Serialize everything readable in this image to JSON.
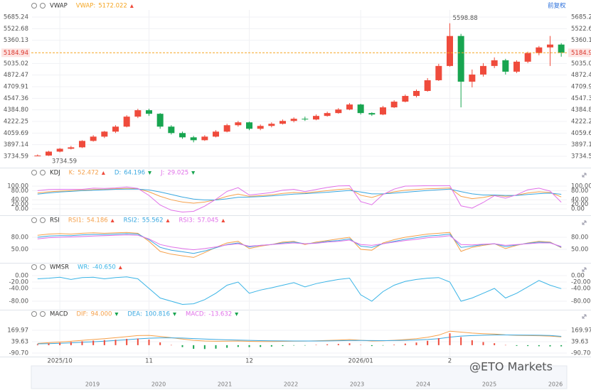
{
  "header": {
    "adjust": "前复权"
  },
  "watermark": "@ETO Markets",
  "navigator": {
    "years": [
      "2019",
      "2020",
      "2021",
      "2022",
      "2023",
      "2024",
      "2025",
      "2026"
    ]
  },
  "chart_data": [
    {
      "type": "candlestick",
      "title": "VWAP",
      "readouts": [
        {
          "name": "VWAP:",
          "value": 5172.022,
          "trend": "up",
          "color": "#f5a623"
        }
      ],
      "categories": [
        null,
        null,
        "2025/10",
        null,
        null,
        null,
        null,
        null,
        null,
        null,
        "11",
        null,
        null,
        null,
        null,
        null,
        null,
        null,
        null,
        "12",
        null,
        null,
        null,
        null,
        null,
        null,
        null,
        null,
        null,
        "2026/01",
        null,
        null,
        null,
        null,
        null,
        null,
        null,
        "2",
        null,
        null,
        null,
        null,
        null,
        null,
        null,
        null,
        null,
        null
      ],
      "ohlc": [
        [
          3735,
          3760,
          3734.59,
          3745
        ],
        [
          3745,
          3810,
          3740,
          3800
        ],
        [
          3800,
          3850,
          3790,
          3840
        ],
        [
          3840,
          3880,
          3830,
          3860
        ],
        [
          3860,
          3960,
          3850,
          3950
        ],
        [
          3950,
          4030,
          3940,
          4010
        ],
        [
          4010,
          4090,
          3990,
          4080
        ],
        [
          4080,
          4170,
          4060,
          4150
        ],
        [
          4150,
          4310,
          4140,
          4290
        ],
        [
          4290,
          4400,
          4270,
          4380
        ],
        [
          4380,
          4400,
          4300,
          4330
        ],
        [
          4330,
          4340,
          4120,
          4150
        ],
        [
          4150,
          4170,
          4040,
          4060
        ],
        [
          4060,
          4080,
          3980,
          4000
        ],
        [
          4000,
          4020,
          3930,
          3960
        ],
        [
          3960,
          4030,
          3950,
          4010
        ],
        [
          4010,
          4100,
          4000,
          4080
        ],
        [
          4080,
          4190,
          4070,
          4170
        ],
        [
          4170,
          4230,
          4150,
          4210
        ],
        [
          4210,
          4220,
          4100,
          4120
        ],
        [
          4120,
          4180,
          4100,
          4160
        ],
        [
          4160,
          4210,
          4140,
          4190
        ],
        [
          4190,
          4250,
          4180,
          4230
        ],
        [
          4230,
          4280,
          4210,
          4260
        ],
        [
          4260,
          4290,
          4230,
          4250
        ],
        [
          4250,
          4320,
          4240,
          4300
        ],
        [
          4300,
          4360,
          4290,
          4340
        ],
        [
          4340,
          4410,
          4330,
          4390
        ],
        [
          4390,
          4480,
          4380,
          4460
        ],
        [
          4460,
          4470,
          4320,
          4340
        ],
        [
          4340,
          4350,
          4300,
          4320
        ],
        [
          4320,
          4440,
          4310,
          4420
        ],
        [
          4420,
          4520,
          4410,
          4500
        ],
        [
          4500,
          4600,
          4490,
          4580
        ],
        [
          4580,
          4670,
          4560,
          4650
        ],
        [
          4650,
          4830,
          4640,
          4800
        ],
        [
          4800,
          5030,
          4790,
          5000
        ],
        [
          5000,
          5598.88,
          4990,
          5420
        ],
        [
          5420,
          5450,
          4420,
          4780
        ],
        [
          4780,
          4950,
          4700,
          4880
        ],
        [
          4880,
          5040,
          4850,
          5000
        ],
        [
          5000,
          5120,
          4970,
          5080
        ],
        [
          5080,
          5100,
          4880,
          4920
        ],
        [
          4920,
          5080,
          4900,
          5060
        ],
        [
          5060,
          5200,
          5040,
          5180
        ],
        [
          5180,
          5280,
          5150,
          5260
        ],
        [
          5260,
          5420,
          5000,
          5300
        ],
        [
          5300,
          5320,
          5130,
          5184.94
        ]
      ],
      "up_color": "#ef4b3c",
      "down_color": "#18a550",
      "ylim": [
        3615,
        5785
      ],
      "yticks": [
        5685.24,
        5522.68,
        5360.13,
        5035.02,
        4872.47,
        4709.91,
        4547.36,
        {
          "value": 4384.8,
          "label": "4384.80"
        },
        4222.25,
        4059.69,
        3897.14,
        3734.59
      ],
      "last_price": 5184.94,
      "last_price_color": "#f5a623",
      "high_label": 5598.88,
      "low_label": 3734.59,
      "grid": true
    },
    {
      "type": "line",
      "title": "KDJ",
      "ylim": [
        -20,
        120
      ],
      "yticks": [
        {
          "value": 100,
          "label": "100.00"
        },
        {
          "value": 80,
          "label": "80.00"
        },
        {
          "value": 40,
          "label": "40.00"
        },
        {
          "value": 20,
          "label": "20.00"
        },
        {
          "value": 0,
          "label": "0.00"
        }
      ],
      "series": [
        {
          "name": "K:",
          "color": "#f5a04a",
          "trend": "up",
          "values": [
            70,
            75,
            78,
            80,
            82,
            85,
            86,
            88,
            90,
            88,
            75,
            55,
            40,
            30,
            25,
            30,
            40,
            55,
            65,
            55,
            58,
            62,
            68,
            72,
            70,
            75,
            80,
            85,
            88,
            60,
            50,
            65,
            75,
            82,
            85,
            88,
            90,
            92,
            55,
            45,
            50,
            60,
            55,
            60,
            70,
            75,
            72,
            52.472
          ]
        },
        {
          "name": "D:",
          "color": "#3aa8e0",
          "trend": "down",
          "values": [
            65,
            70,
            74,
            77,
            80,
            82,
            84,
            86,
            87,
            87,
            83,
            74,
            63,
            52,
            43,
            39,
            39,
            44,
            51,
            52,
            54,
            57,
            61,
            65,
            67,
            70,
            73,
            77,
            81,
            74,
            66,
            66,
            69,
            73,
            77,
            81,
            84,
            87,
            76,
            66,
            61,
            61,
            59,
            59,
            63,
            67,
            69,
            64.196
          ]
        },
        {
          "name": "J:",
          "color": "#e070e8",
          "trend": "down",
          "values": [
            80,
            85,
            86,
            86,
            86,
            91,
            90,
            92,
            96,
            90,
            59,
            17,
            -6,
            -14,
            -11,
            12,
            42,
            77,
            93,
            61,
            66,
            72,
            82,
            86,
            76,
            85,
            94,
            101,
            102,
            32,
            18,
            63,
            87,
            100,
            101,
            102,
            102,
            102,
            13,
            3,
            28,
            58,
            47,
            62,
            84,
            91,
            78,
            29.025
          ]
        }
      ],
      "grid": true
    },
    {
      "type": "line",
      "title": "RSI",
      "ylim": [
        25,
        100
      ],
      "yticks": [
        {
          "value": 80,
          "label": "80.00"
        },
        {
          "value": 50,
          "label": "50.00"
        }
      ],
      "series": [
        {
          "name": "RSI1:",
          "color": "#f5a04a",
          "trend": "up",
          "values": [
            85,
            88,
            89,
            88,
            90,
            91,
            90,
            91,
            92,
            90,
            70,
            45,
            38,
            34,
            30,
            42,
            55,
            66,
            70,
            52,
            58,
            62,
            68,
            70,
            62,
            68,
            72,
            76,
            80,
            50,
            48,
            66,
            74,
            80,
            84,
            88,
            90,
            92,
            45,
            55,
            60,
            64,
            52,
            60,
            66,
            70,
            68,
            54.186
          ]
        },
        {
          "name": "RSI2:",
          "color": "#3aa8e0",
          "trend": "up",
          "values": [
            80,
            83,
            84,
            84,
            86,
            87,
            87,
            88,
            89,
            88,
            74,
            55,
            48,
            44,
            40,
            46,
            54,
            62,
            66,
            56,
            60,
            62,
            66,
            68,
            64,
            66,
            70,
            72,
            76,
            58,
            55,
            64,
            70,
            75,
            79,
            83,
            85,
            88,
            55,
            58,
            62,
            64,
            57,
            61,
            65,
            68,
            67,
            55.562
          ]
        },
        {
          "name": "RSI3:",
          "color": "#e070e8",
          "trend": "up",
          "values": [
            76,
            79,
            80,
            81,
            82,
            83,
            84,
            85,
            86,
            85,
            76,
            62,
            56,
            52,
            49,
            52,
            56,
            61,
            64,
            58,
            60,
            62,
            64,
            66,
            64,
            65,
            68,
            70,
            73,
            62,
            60,
            64,
            68,
            72,
            75,
            79,
            81,
            84,
            62,
            61,
            63,
            64,
            60,
            62,
            64,
            66,
            66,
            57.045
          ]
        }
      ],
      "grid": true
    },
    {
      "type": "line",
      "title": "WMSR",
      "ylim": [
        -105,
        10
      ],
      "yticks": [
        {
          "value": 0,
          "label": "0.00"
        },
        {
          "value": -20,
          "label": "-20.00"
        },
        {
          "value": -40,
          "label": "-40.00"
        },
        {
          "value": -80,
          "label": "-80.00"
        }
      ],
      "series": [
        {
          "name": "WR:",
          "color": "#3ab4e6",
          "trend": "up",
          "values": [
            -10,
            -8,
            -5,
            -12,
            -6,
            -5,
            -10,
            -6,
            -4,
            -10,
            -40,
            -70,
            -80,
            -90,
            -88,
            -75,
            -55,
            -30,
            -20,
            -55,
            -45,
            -38,
            -30,
            -22,
            -35,
            -25,
            -18,
            -12,
            -8,
            -60,
            -80,
            -50,
            -30,
            -18,
            -12,
            -8,
            -6,
            -20,
            -80,
            -70,
            -55,
            -40,
            -70,
            -55,
            -35,
            -15,
            -30,
            -40.65
          ],
          "value_labels": [
            null,
            null,
            null,
            null,
            null,
            null,
            null,
            null,
            null,
            null,
            null,
            null,
            null,
            null,
            null,
            null,
            null,
            null,
            null,
            null,
            null,
            null,
            null,
            null,
            null,
            null,
            null,
            null,
            null,
            null,
            null,
            null,
            null,
            null,
            null,
            null,
            null,
            null,
            null,
            null,
            null,
            null,
            null,
            null,
            null,
            null,
            null,
            "-40.650"
          ]
        }
      ],
      "grid": true
    },
    {
      "type": "line",
      "title": "MACD",
      "ylim": [
        -115,
        276
      ],
      "yticks": [
        169.97,
        39.63,
        {
          "value": -90.7,
          "label": "-90.70"
        }
      ],
      "series": [
        {
          "name": "DIF:",
          "color": "#f5a04a",
          "trend": "down",
          "values": [
            20,
            28,
            36,
            45,
            55,
            65,
            75,
            85,
            98,
            110,
            112,
            100,
            85,
            70,
            55,
            48,
            45,
            46,
            48,
            44,
            42,
            42,
            44,
            46,
            47,
            50,
            54,
            58,
            64,
            56,
            48,
            50,
            56,
            64,
            74,
            90,
            115,
            160,
            150,
            138,
            132,
            128,
            118,
            112,
            110,
            108,
            104,
            94
          ],
          "value_labels": [
            null,
            null,
            null,
            null,
            null,
            null,
            null,
            null,
            null,
            null,
            null,
            null,
            null,
            null,
            null,
            null,
            null,
            null,
            null,
            null,
            null,
            null,
            null,
            null,
            null,
            null,
            null,
            null,
            null,
            null,
            null,
            null,
            null,
            null,
            null,
            null,
            null,
            null,
            null,
            null,
            null,
            null,
            null,
            null,
            null,
            null,
            null,
            "94.000"
          ]
        },
        {
          "name": "DEA:",
          "color": "#3aa8e0",
          "trend": "down",
          "values": [
            15,
            18,
            22,
            27,
            33,
            39,
            46,
            54,
            62,
            72,
            80,
            84,
            84,
            81,
            76,
            70,
            65,
            61,
            58,
            55,
            52,
            50,
            49,
            48,
            48,
            48,
            49,
            51,
            53,
            54,
            53,
            52,
            53,
            55,
            59,
            65,
            75,
            92,
            104,
            110,
            114,
            117,
            117,
            116,
            115,
            114,
            111,
            100.816
          ]
        },
        {
          "name": "MACD:",
          "color": "#e070e8",
          "trend": "down",
          "type": "bar",
          "up_color": "#ef4b3c",
          "down_color": "#18a550",
          "values": [
            10,
            20,
            28,
            36,
            44,
            52,
            58,
            62,
            72,
            76,
            64,
            32,
            2,
            -22,
            -42,
            -44,
            -40,
            -30,
            -20,
            -22,
            -20,
            -16,
            -10,
            -4,
            -2,
            4,
            10,
            14,
            22,
            4,
            -10,
            -4,
            6,
            18,
            30,
            50,
            80,
            136,
            92,
            56,
            36,
            22,
            2,
            -8,
            -10,
            -12,
            -14,
            -13.632
          ]
        }
      ],
      "grid": true
    }
  ]
}
